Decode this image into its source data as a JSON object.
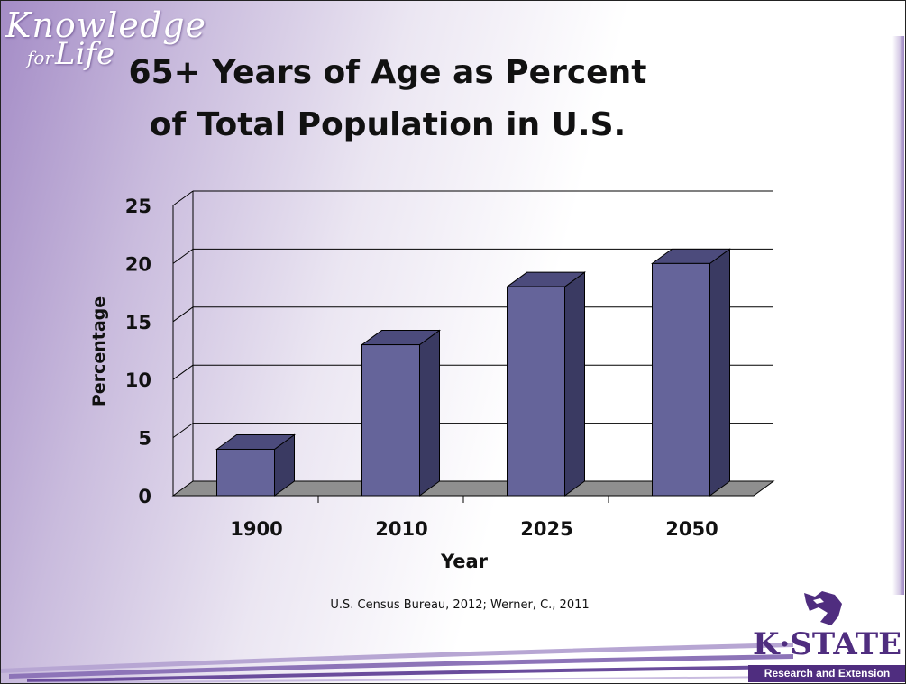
{
  "brand": {
    "tagline_line1": "Knowledge",
    "tagline_for": "for",
    "tagline_life": "Life"
  },
  "title": "65+ Years of Age as Percent of Total Population in U.S.",
  "source_note": "U.S. Census Bureau, 2012; Werner, C., 2011",
  "logo": {
    "wordmark": "K·STATE",
    "subtitle": "Research and Extension",
    "brand_color": "#4f2d7f"
  },
  "colors": {
    "bar_front": "#65649a",
    "bar_top": "#4c4b7c",
    "bar_side": "#3a3a62",
    "floor": "#8f8f8f",
    "background_accent": "#a48cc6"
  },
  "chart_data": {
    "type": "bar",
    "style": "3d-column",
    "categories": [
      "1900",
      "2010",
      "2025",
      "2050"
    ],
    "values": [
      4,
      13,
      18,
      20
    ],
    "title": "",
    "xlabel": "Year",
    "ylabel": "Percentage",
    "ylim": [
      0,
      25
    ],
    "yticks": [
      0,
      5,
      10,
      15,
      20,
      25
    ],
    "grid": true,
    "legend": "none"
  }
}
